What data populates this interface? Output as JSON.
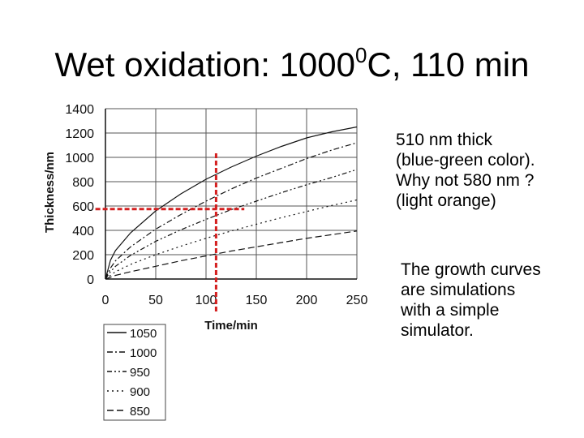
{
  "slide": {
    "title_main": "Wet oxidation: 1000",
    "title_sup": "0",
    "title_end": "C, 110 min",
    "note_color": "510 nm thick\n(blue-green color).\nWhy not 580 nm ?\n(light orange)",
    "note_growth": "The growth curves\nare simulations\nwith a simple\nsimulator."
  },
  "colors": {
    "marker": "#d42020",
    "curve": "#111111"
  },
  "chart_data": {
    "type": "line",
    "xlabel": "Time/min",
    "ylabel": "Thickness/nm",
    "xlim": [
      0,
      250
    ],
    "ylim": [
      0,
      1400
    ],
    "xticks": [
      "0",
      "50",
      "100",
      "150",
      "200",
      "250"
    ],
    "yticks": [
      "0",
      "200",
      "400",
      "600",
      "800",
      "1000",
      "1200",
      "1400"
    ],
    "grid": true,
    "legend_position": "below-left",
    "series": [
      {
        "name": "1050",
        "style": "solid",
        "x": [
          0,
          5,
          10,
          25,
          50,
          75,
          100,
          125,
          150,
          175,
          200,
          225,
          250
        ],
        "y": [
          0,
          155,
          235,
          380,
          560,
          700,
          820,
          920,
          1010,
          1090,
          1160,
          1210,
          1250
        ]
      },
      {
        "name": "1000",
        "style": "dashdot",
        "x": [
          0,
          5,
          10,
          25,
          50,
          75,
          100,
          125,
          150,
          175,
          200,
          225,
          250
        ],
        "y": [
          0,
          90,
          150,
          265,
          410,
          530,
          640,
          740,
          830,
          910,
          990,
          1060,
          1120
        ]
      },
      {
        "name": "950",
        "style": "dashdotdot",
        "x": [
          0,
          5,
          10,
          25,
          50,
          75,
          100,
          125,
          150,
          175,
          200,
          225,
          250
        ],
        "y": [
          0,
          60,
          105,
          195,
          310,
          405,
          490,
          570,
          640,
          710,
          775,
          835,
          900
        ]
      },
      {
        "name": "900",
        "style": "dotted",
        "x": [
          0,
          5,
          10,
          25,
          50,
          75,
          100,
          125,
          150,
          175,
          200,
          225,
          250
        ],
        "y": [
          0,
          30,
          60,
          120,
          200,
          270,
          335,
          395,
          450,
          505,
          555,
          605,
          650
        ]
      },
      {
        "name": "850",
        "style": "dashed",
        "x": [
          0,
          5,
          10,
          25,
          50,
          75,
          100,
          125,
          150,
          175,
          200,
          225,
          250
        ],
        "y": [
          0,
          15,
          30,
          60,
          105,
          150,
          190,
          230,
          265,
          300,
          335,
          365,
          395
        ]
      }
    ],
    "annotations": [
      {
        "type": "vline",
        "x": 110,
        "y_from": 0,
        "y_to": 1050
      },
      {
        "type": "hline",
        "y": 575,
        "x_from": -10,
        "x_to": 130
      }
    ]
  }
}
